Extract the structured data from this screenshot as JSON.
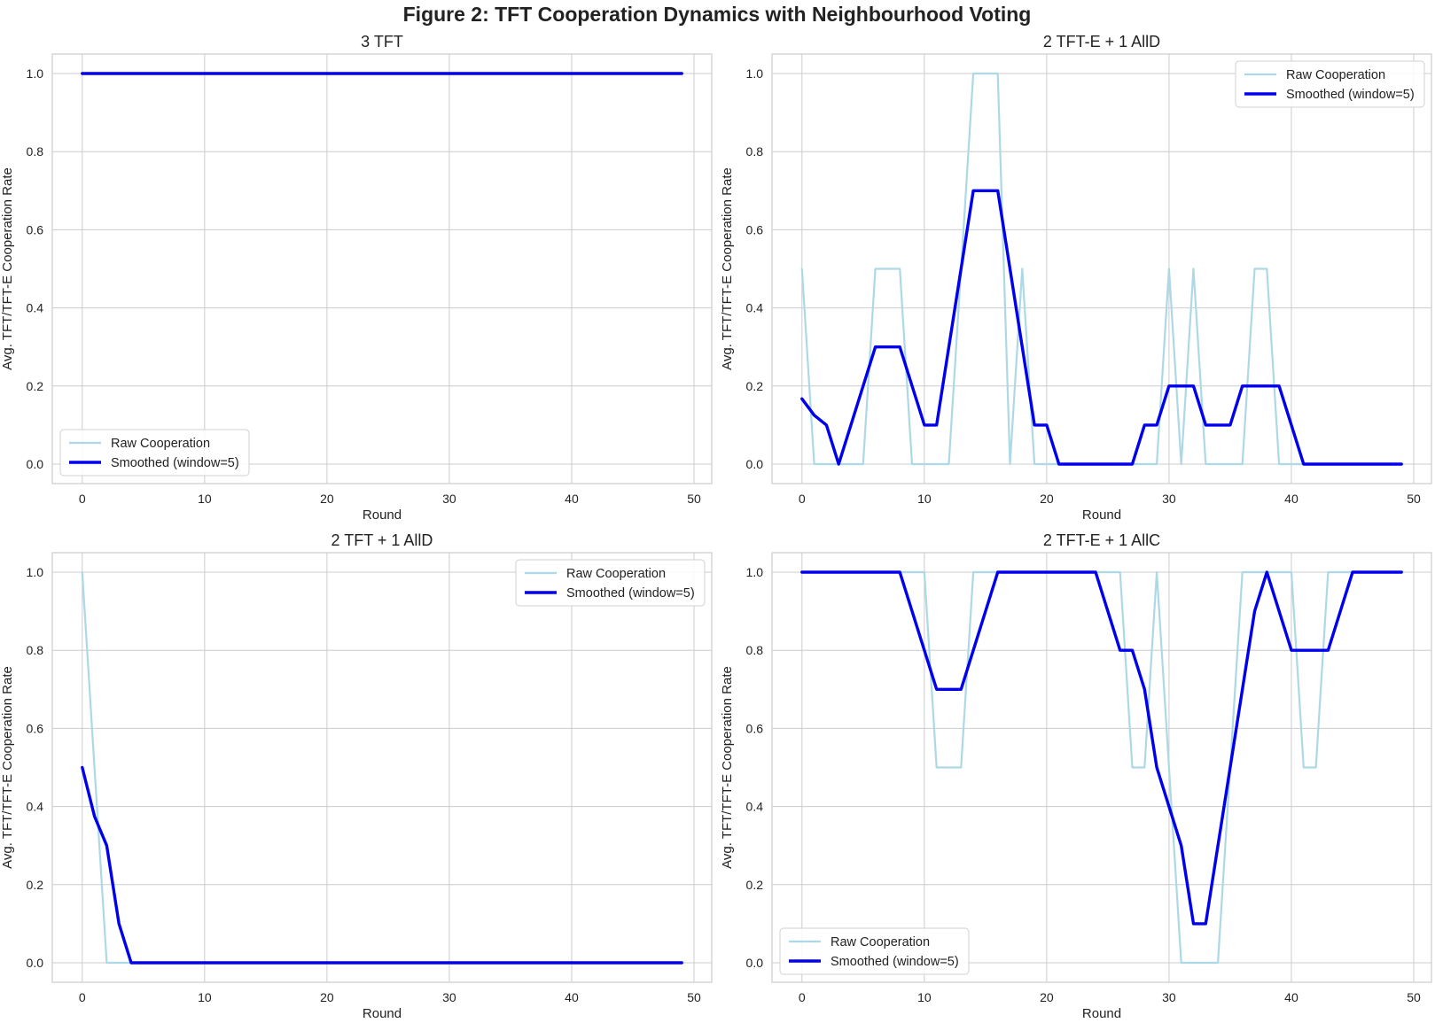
{
  "figure_title": "Figure 2: TFT Cooperation Dynamics with Neighbourhood Voting",
  "colors": {
    "raw": "#add8e6",
    "smoothed": "#0000ee",
    "grid": "#cccccc",
    "frame": "#cccccc"
  },
  "legend_labels": {
    "raw": "Raw Cooperation",
    "smoothed": "Smoothed (window=5)"
  },
  "chart_data": [
    {
      "type": "line",
      "title": "3 TFT",
      "xlabel": "Round",
      "ylabel": "Avg. TFT/TFT-E Cooperation Rate",
      "xlim": [
        -2.45,
        51.45
      ],
      "ylim": [
        -0.05,
        1.05
      ],
      "xticks": [
        "0",
        "10",
        "20",
        "30",
        "40",
        "50"
      ],
      "yticks": [
        "0.0",
        "0.2",
        "0.4",
        "0.6",
        "0.8",
        "1.0"
      ],
      "grid": true,
      "legend_position": "lower-left",
      "series": [
        {
          "name": "Raw Cooperation",
          "x": [
            0,
            49
          ],
          "y": [
            1.0,
            1.0
          ]
        },
        {
          "name": "Smoothed (window=5)",
          "x": [
            0,
            49
          ],
          "y": [
            1.0,
            1.0
          ]
        }
      ]
    },
    {
      "type": "line",
      "title": "2 TFT-E + 1 AllD",
      "xlabel": "Round",
      "ylabel": "Avg. TFT/TFT-E Cooperation Rate",
      "xlim": [
        -2.45,
        51.45
      ],
      "ylim": [
        -0.05,
        1.05
      ],
      "xticks": [
        "0",
        "10",
        "20",
        "30",
        "40",
        "50"
      ],
      "yticks": [
        "0.0",
        "0.2",
        "0.4",
        "0.6",
        "0.8",
        "1.0"
      ],
      "grid": true,
      "legend_position": "upper-right",
      "series": [
        {
          "name": "Raw Cooperation",
          "x": [
            0,
            1,
            2,
            3,
            4,
            5,
            6,
            7,
            8,
            9,
            10,
            11,
            12,
            13,
            14,
            15,
            16,
            17,
            18,
            19,
            20,
            21,
            28,
            29,
            30,
            31,
            32,
            33,
            36,
            37,
            38,
            39,
            49
          ],
          "y": [
            0.5,
            0,
            0,
            0,
            0,
            0,
            0.5,
            0.5,
            0.5,
            0,
            0,
            0,
            0,
            0.5,
            1,
            1,
            1,
            0,
            0.5,
            0,
            0,
            0,
            0,
            0,
            0.5,
            0,
            0.5,
            0,
            0,
            0.5,
            0.5,
            0,
            0
          ]
        },
        {
          "name": "Smoothed (window=5)",
          "x": [
            0,
            1,
            2,
            3,
            6,
            7,
            8,
            10,
            11,
            14,
            15,
            16,
            19,
            20,
            21,
            27,
            28,
            29,
            30,
            31,
            32,
            33,
            34,
            35,
            36,
            37,
            38,
            39,
            41,
            49
          ],
          "y": [
            0.167,
            0.125,
            0.1,
            0,
            0.3,
            0.3,
            0.3,
            0.1,
            0.1,
            0.7,
            0.7,
            0.7,
            0.1,
            0.1,
            0,
            0,
            0.1,
            0.1,
            0.2,
            0.2,
            0.2,
            0.1,
            0.1,
            0.1,
            0.2,
            0.2,
            0.2,
            0.2,
            0,
            0
          ]
        }
      ]
    },
    {
      "type": "line",
      "title": "2 TFT + 1 AllD",
      "xlabel": "Round",
      "ylabel": "Avg. TFT/TFT-E Cooperation Rate",
      "xlim": [
        -2.45,
        51.45
      ],
      "ylim": [
        -0.05,
        1.05
      ],
      "xticks": [
        "0",
        "10",
        "20",
        "30",
        "40",
        "50"
      ],
      "yticks": [
        "0.0",
        "0.2",
        "0.4",
        "0.6",
        "0.8",
        "1.0"
      ],
      "grid": true,
      "legend_position": "upper-right",
      "series": [
        {
          "name": "Raw Cooperation",
          "x": [
            0,
            1,
            2,
            49
          ],
          "y": [
            1.0,
            0.5,
            0,
            0
          ]
        },
        {
          "name": "Smoothed (window=5)",
          "x": [
            0,
            1,
            2,
            3,
            4,
            49
          ],
          "y": [
            0.5,
            0.375,
            0.3,
            0.1,
            0,
            0
          ]
        }
      ]
    },
    {
      "type": "line",
      "title": "2 TFT-E + 1 AllC",
      "xlabel": "Round",
      "ylabel": "Avg. TFT/TFT-E Cooperation Rate",
      "xlim": [
        -2.45,
        51.45
      ],
      "ylim": [
        -0.05,
        1.05
      ],
      "xticks": [
        "0",
        "10",
        "20",
        "30",
        "40",
        "50"
      ],
      "yticks": [
        "0.0",
        "0.2",
        "0.4",
        "0.6",
        "0.8",
        "1.0"
      ],
      "grid": true,
      "legend_position": "lower-left",
      "series": [
        {
          "name": "Raw Cooperation",
          "x": [
            0,
            10,
            11,
            12,
            13,
            14,
            26,
            27,
            28,
            29,
            30,
            31,
            32,
            33,
            34,
            35,
            36,
            37,
            40,
            41,
            42,
            43,
            49
          ],
          "y": [
            1,
            1,
            0.5,
            0.5,
            0.5,
            1,
            1,
            0.5,
            0.5,
            1,
            0.5,
            0,
            0,
            0,
            0,
            0.5,
            1,
            1,
            1,
            0.5,
            0.5,
            1,
            1
          ]
        },
        {
          "name": "Smoothed (window=5)",
          "x": [
            0,
            8,
            11,
            12,
            13,
            16,
            24,
            26,
            27,
            28,
            29,
            31,
            32,
            33,
            36,
            37,
            38,
            40,
            41,
            43,
            45,
            49
          ],
          "y": [
            1,
            1,
            0.7,
            0.7,
            0.7,
            1,
            1,
            0.8,
            0.8,
            0.7,
            0.5,
            0.3,
            0.1,
            0.1,
            0.7,
            0.9,
            1.0,
            0.8,
            0.8,
            0.8,
            1.0,
            1.0
          ]
        }
      ]
    }
  ]
}
